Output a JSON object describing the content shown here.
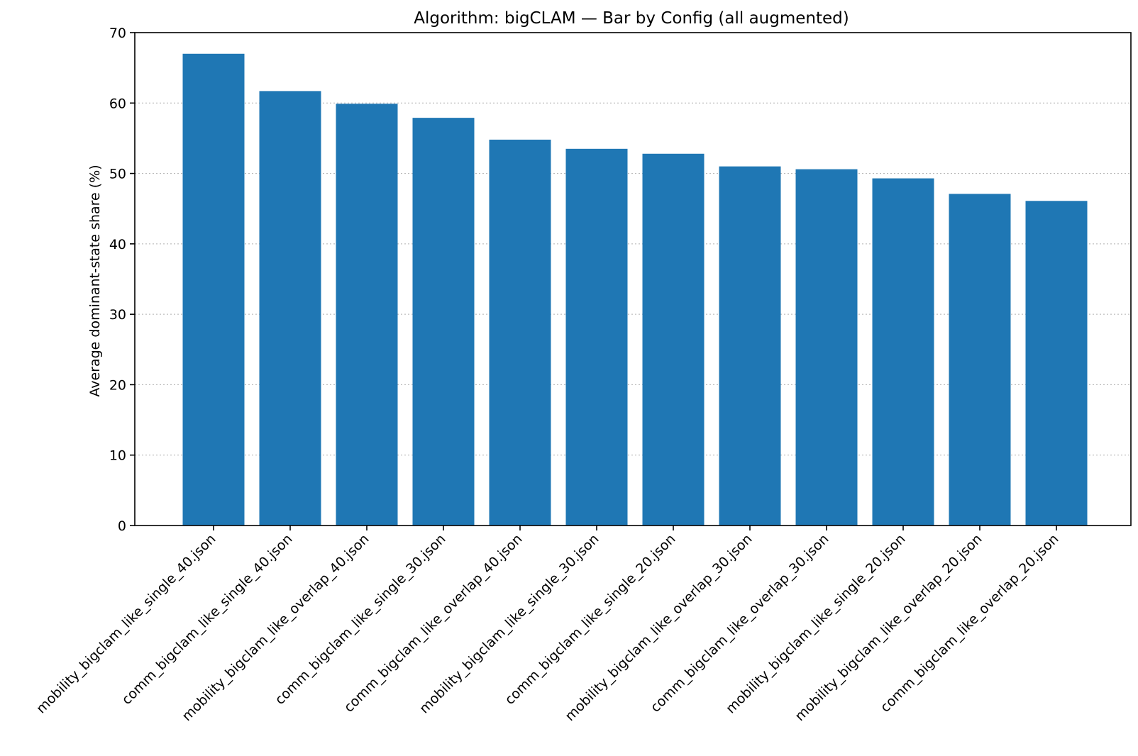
{
  "chart_data": {
    "type": "bar",
    "title": "Algorithm: bigCLAM — Bar by Config (all augmented)",
    "xlabel": "",
    "ylabel": "Average dominant-state share (%)",
    "ylim": [
      0,
      70
    ],
    "yticks": [
      0,
      10,
      20,
      30,
      40,
      50,
      60,
      70
    ],
    "grid": true,
    "bar_color": "#1f77b4",
    "categories": [
      "mobility_bigclam_like_single_40.json",
      "comm_bigclam_like_single_40.json",
      "mobility_bigclam_like_overlap_40.json",
      "comm_bigclam_like_single_30.json",
      "comm_bigclam_like_overlap_40.json",
      "mobility_bigclam_like_single_30.json",
      "comm_bigclam_like_single_20.json",
      "mobility_bigclam_like_overlap_30.json",
      "comm_bigclam_like_overlap_30.json",
      "mobility_bigclam_like_single_20.json",
      "mobility_bigclam_like_overlap_20.json",
      "comm_bigclam_like_overlap_20.json"
    ],
    "values": [
      67.0,
      61.7,
      59.9,
      57.9,
      54.8,
      53.5,
      52.8,
      51.0,
      50.6,
      49.3,
      47.1,
      46.1
    ]
  }
}
